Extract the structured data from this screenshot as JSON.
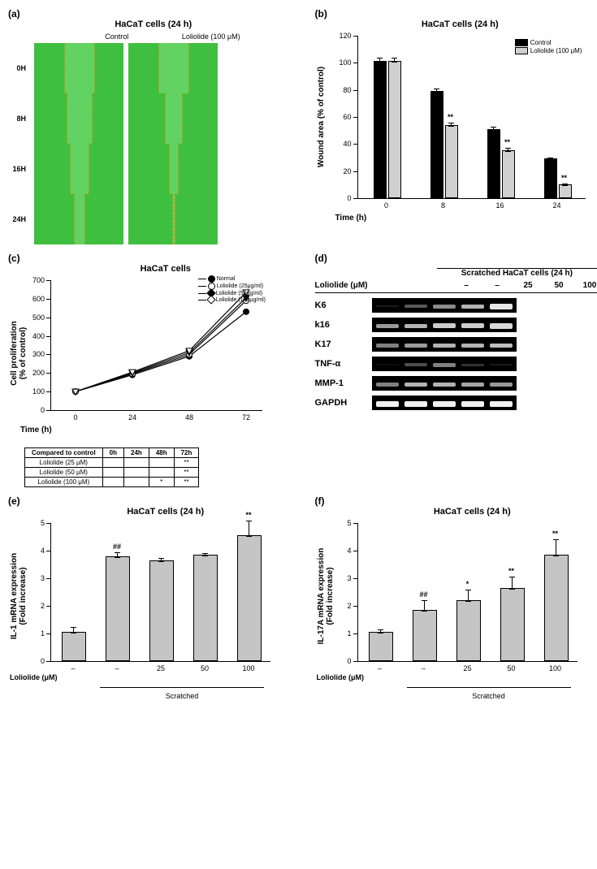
{
  "panel_a": {
    "label": "(a)",
    "title": "HaCaT cells (24 h)",
    "columns": [
      "Control",
      "Loliolide (100 μM)"
    ],
    "rows": [
      "0H",
      "8H",
      "16H",
      "24H"
    ],
    "gap_widths": {
      "control": [
        36,
        30,
        22,
        12
      ],
      "loliolide": [
        36,
        20,
        10,
        2
      ]
    },
    "bg_color": "#3fbf3f"
  },
  "panel_b": {
    "label": "(b)",
    "title": "HaCaT cells (24 h)",
    "y_label": "Wound area (% of control)",
    "x_label": "Time (h)",
    "y_max": 120,
    "y_tick": 20,
    "categories": [
      "0",
      "8",
      "16",
      "24"
    ],
    "series": [
      {
        "name": "Control",
        "color": "#000000",
        "values": [
          100,
          78,
          50,
          28
        ],
        "err": [
          4,
          3,
          3,
          2
        ]
      },
      {
        "name": "Loliolide (100 μM)",
        "color": "#d0d0d0",
        "values": [
          100,
          53,
          34,
          9
        ],
        "err": [
          4,
          3,
          3,
          2
        ],
        "sig": [
          "",
          "**",
          "**",
          "**"
        ]
      }
    ]
  },
  "panel_c": {
    "label": "(c)",
    "title": "HaCaT cells",
    "y_label": "Cell proliferation\n(% of control)",
    "x_label": "Time (h)",
    "y_min": 0,
    "y_max": 700,
    "y_tick": 100,
    "x_categories": [
      "0",
      "24",
      "48",
      "72"
    ],
    "series": [
      {
        "name": "Normal",
        "marker": "filled-circle",
        "values": [
          100,
          190,
          290,
          530
        ]
      },
      {
        "name": "Loliolide (25μg/ml)",
        "marker": "open-circle",
        "values": [
          100,
          195,
          300,
          590
        ]
      },
      {
        "name": "Loliolide (50μg/ml)",
        "marker": "filled-down",
        "values": [
          100,
          200,
          310,
          605
        ]
      },
      {
        "name": "Loliolide (100μg/ml)",
        "marker": "open-down",
        "values": [
          100,
          205,
          320,
          635
        ]
      }
    ],
    "table": {
      "header": [
        "Compared to control",
        "0h",
        "24h",
        "48h",
        "72h"
      ],
      "rows": [
        [
          "Loliolide (25 μM)",
          "",
          "",
          "",
          "**"
        ],
        [
          "Loliolide (50 μM)",
          "",
          "",
          "",
          "**"
        ],
        [
          "Loliolide (100 μM)",
          "",
          "",
          "*",
          "**"
        ]
      ]
    }
  },
  "panel_d": {
    "label": "(d)",
    "header": "Scratched HaCaT cells (24 h)",
    "treatment_label": "Loliolide (μM)",
    "lanes": [
      "–",
      "–",
      "25",
      "50",
      "100"
    ],
    "rows": [
      {
        "label": "K6",
        "intensity": [
          0.1,
          0.35,
          0.55,
          0.7,
          0.9
        ]
      },
      {
        "label": "k16",
        "intensity": [
          0.6,
          0.7,
          0.8,
          0.8,
          0.85
        ]
      },
      {
        "label": "K17",
        "intensity": [
          0.5,
          0.6,
          0.7,
          0.7,
          0.75
        ]
      },
      {
        "label": "TNF-α",
        "intensity": [
          0.05,
          0.3,
          0.5,
          0.2,
          0.1
        ]
      },
      {
        "label": "MMP-1",
        "intensity": [
          0.5,
          0.7,
          0.7,
          0.65,
          0.6
        ]
      },
      {
        "label": "GAPDH",
        "intensity": [
          0.95,
          0.95,
          0.95,
          0.95,
          0.95
        ]
      }
    ]
  },
  "panel_e": {
    "label": "(e)",
    "title": "HaCaT cells (24 h)",
    "y_label": "IL-1 mRNA expression\n(Fold increase)",
    "y_max": 5,
    "y_tick": 1,
    "x_treatment_label": "Loliolide (μM)",
    "x_cats": [
      "–",
      "–",
      "25",
      "50",
      "100"
    ],
    "values": [
      1.0,
      3.75,
      3.6,
      3.8,
      4.5
    ],
    "err": [
      0.25,
      0.2,
      0.15,
      0.1,
      0.6
    ],
    "sig": [
      "",
      "##",
      "",
      "",
      "**"
    ],
    "bar_color": "#c5c5c5",
    "scratched_label": "Scratched",
    "scratched_span": [
      1,
      4
    ]
  },
  "panel_f": {
    "label": "(f)",
    "title": "HaCaT cells (24 h)",
    "y_label": "IL-17A mRNA expression\n(Fold increase)",
    "y_max": 5,
    "y_tick": 1,
    "x_treatment_label": "Loliolide (μM)",
    "x_cats": [
      "–",
      "–",
      "25",
      "50",
      "100"
    ],
    "values": [
      1.0,
      1.8,
      2.15,
      2.6,
      3.8
    ],
    "err": [
      0.15,
      0.4,
      0.45,
      0.45,
      0.6
    ],
    "sig": [
      "",
      "##",
      "*",
      "**",
      "**"
    ],
    "bar_color": "#c5c5c5",
    "scratched_label": "Scratched",
    "scratched_span": [
      1,
      4
    ]
  }
}
